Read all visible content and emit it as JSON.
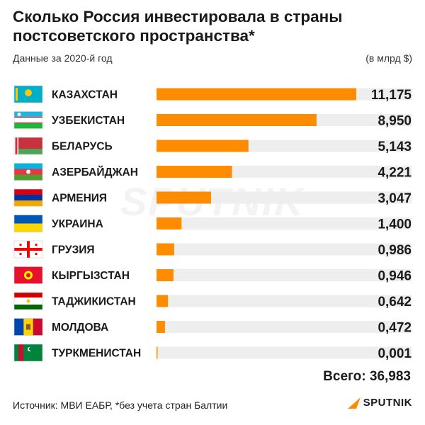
{
  "header": {
    "title": "Сколько Россия инвестировала в страны постсоветского пространства*",
    "subtitle": "Данные за 2020-й год",
    "unit": "(в млрд $)"
  },
  "footer": {
    "source": "Источник: МВИ ЕАБР, *без учета стран Балтии",
    "logo": "SPUTNIK",
    "total": "Всего: 36,983"
  },
  "watermark": "SPUTNIK",
  "colors": {
    "bar": "#ff8c00",
    "track": "#eeeeee"
  },
  "chart_data": {
    "type": "bar",
    "orientation": "horizontal",
    "categories": [
      "КАЗАХСТАН",
      "УЗБЕКИСТАН",
      "БЕЛАРУСЬ",
      "АЗЕРБАЙДЖАН",
      "АРМЕНИЯ",
      "УКРАИНА",
      "ГРУЗИЯ",
      "КЫРГЫЗСТАН",
      "ТАДЖИКИСТАН",
      "МОЛДОВА",
      "ТУРКМЕНИСТАН"
    ],
    "values": [
      11.175,
      8.95,
      5.143,
      4.221,
      3.047,
      1.4,
      0.986,
      0.946,
      0.642,
      0.472,
      0.001
    ],
    "value_labels": [
      "11,175",
      "8,950",
      "5,143",
      "4,221",
      "3,047",
      "1,400",
      "0,986",
      "0,946",
      "0,642",
      "0,472",
      "0,001"
    ],
    "flags": [
      "kazakhstan-flag",
      "uzbekistan-flag",
      "belarus-flag",
      "azerbaijan-flag",
      "armenia-flag",
      "ukraine-flag",
      "georgia-flag",
      "kyrgyzstan-flag",
      "tajikistan-flag",
      "moldova-flag",
      "turkmenistan-flag"
    ],
    "xlim": [
      0,
      11.175
    ]
  }
}
